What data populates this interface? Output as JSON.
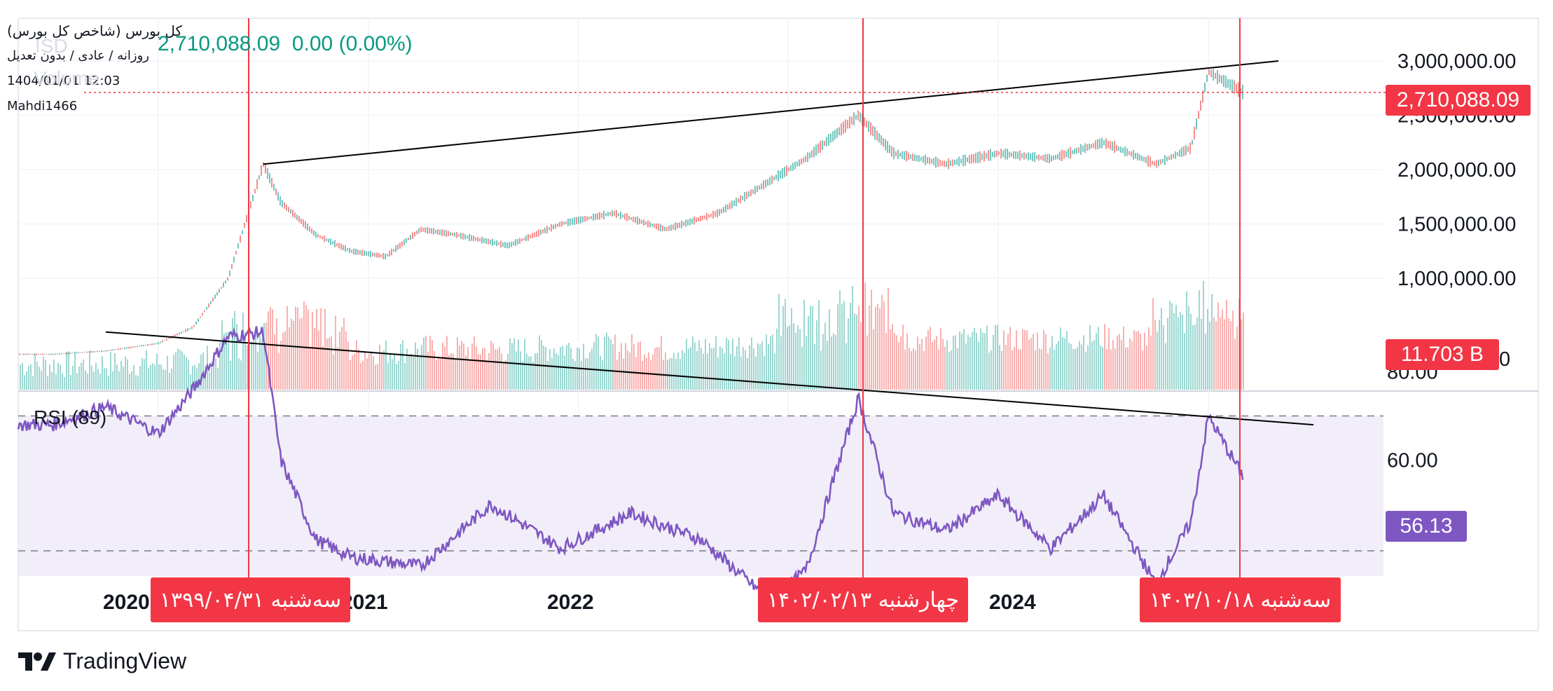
{
  "header": {
    "title": "کل بورس (شاخص کل بورس)",
    "subtitle": "روزانه / عادی / بدون تعدیل",
    "datetime": "1404/01/01 12:03",
    "author": "Mahdi1466",
    "price": "2,710,088.09",
    "change": "0.00",
    "change_pct": "(0.00%)",
    "ghost_symbol": "ISD",
    "ghost_volume": "Volume"
  },
  "price_axis": {
    "ticks": [
      "3,000,000.00",
      "2,500,000.00",
      "2,000,000.00",
      "1,500,000.00",
      "1,000,000.00",
      "0"
    ],
    "last_price_badge": "2,710,088.09",
    "volume_badge": "11.703 B"
  },
  "rsi": {
    "title": "RSI (89)",
    "ticks": [
      "80.00",
      "60.00"
    ],
    "value_badge": "56.13",
    "upper_band": 70,
    "lower_band": 30
  },
  "time_axis": {
    "years": [
      "2020",
      "2021",
      "2022",
      "2024"
    ]
  },
  "markers": [
    {
      "label": "سه‌شنبه ۱۳۹۹/۰۴/۳۱"
    },
    {
      "label": "چهارشنبه ۱۴۰۲/۰۲/۱۳"
    },
    {
      "label": "سه‌شنبه ۱۴۰۳/۱۰/۱۸"
    }
  ],
  "brand": {
    "name": "TradingView"
  },
  "colors": {
    "up": "#26a69a",
    "down": "#ef5350",
    "rsi_line": "#7e57c2",
    "rsi_band": "#ede7f6",
    "marker": "#f23645",
    "rsi_badge": "#7e57c2"
  },
  "chart_data": {
    "type": "line",
    "title": "کل بورس (شاخص کل بورس)",
    "price_series": {
      "name": "کل بورس",
      "x": [
        "2019-07",
        "2019-10",
        "2020-01",
        "2020-03",
        "2020-05",
        "2020-07",
        "2020-08",
        "2020-10",
        "2020-12",
        "2021-02",
        "2021-04",
        "2021-06",
        "2021-09",
        "2021-12",
        "2022-03",
        "2022-06",
        "2022-09",
        "2022-12",
        "2023-02",
        "2023-05",
        "2023-07",
        "2023-10",
        "2024-01",
        "2024-04",
        "2024-07",
        "2024-10",
        "2024-12",
        "2025-01",
        "2025-03"
      ],
      "y": [
        300000,
        330000,
        400000,
        550000,
        1000000,
        2050000,
        1700000,
        1400000,
        1250000,
        1200000,
        1450000,
        1400000,
        1300000,
        1500000,
        1600000,
        1450000,
        1600000,
        1900000,
        2100000,
        2500000,
        2150000,
        2050000,
        2150000,
        2100000,
        2250000,
        2050000,
        2200000,
        2900000,
        2710088.09
      ]
    },
    "rsi_series": {
      "name": "RSI (89)",
      "x": [
        "2019-07",
        "2019-10",
        "2020-01",
        "2020-03",
        "2020-05",
        "2020-07",
        "2020-08",
        "2020-10",
        "2020-12",
        "2021-04",
        "2021-08",
        "2021-12",
        "2022-04",
        "2022-08",
        "2022-12",
        "2023-02",
        "2023-05",
        "2023-07",
        "2023-10",
        "2024-01",
        "2024-04",
        "2024-07",
        "2024-10",
        "2024-12",
        "2025-01",
        "2025-03"
      ],
      "y": [
        68,
        72,
        66,
        76,
        88,
        89,
        60,
        42,
        38,
        36,
        50,
        40,
        48,
        42,
        28,
        35,
        74,
        48,
        44,
        52,
        40,
        52,
        32,
        46,
        70,
        56.13
      ]
    },
    "trendlines": [
      {
        "series": "price",
        "from": [
          "2020-07",
          2050000
        ],
        "to": [
          "2025-05",
          3000000
        ]
      },
      {
        "series": "rsi",
        "from": [
          "2019-10",
          89
        ],
        "to": [
          "2025-07",
          68
        ]
      }
    ],
    "ylim_price": [
      0,
      3200000
    ],
    "ylim_rsi": [
      28,
      92
    ],
    "grid": true
  }
}
